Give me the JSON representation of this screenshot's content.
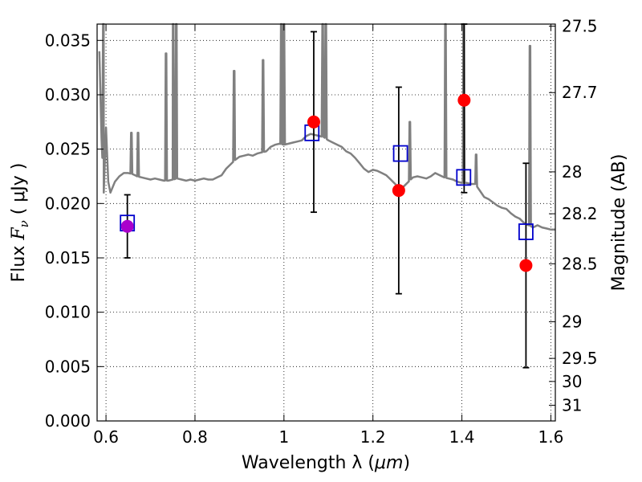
{
  "chart_data": {
    "type": "scatter",
    "xlabel_prefix": "Wavelength  λ (",
    "xlabel_unit": "μm",
    "xlabel_suffix": ")",
    "ylabel_prefix": "Flux  ",
    "ylabel_symbol": "F",
    "ylabel_sub": "ν",
    "ylabel_unit": "  ( μJy )",
    "y2label": "Magnitude (AB)",
    "xlim": [
      0.58,
      1.61
    ],
    "ylim": [
      0.0,
      0.0365
    ],
    "grid": true,
    "x_ticks": [
      {
        "value": 0.6,
        "label": "0.6"
      },
      {
        "value": 0.8,
        "label": "0.8"
      },
      {
        "value": 1.0,
        "label": "1"
      },
      {
        "value": 1.2,
        "label": "1.2"
      },
      {
        "value": 1.4,
        "label": "1.4"
      },
      {
        "value": 1.6,
        "label": "1.6"
      }
    ],
    "y_ticks": [
      {
        "value": 0.0,
        "label": "0.000"
      },
      {
        "value": 0.005,
        "label": "0.005"
      },
      {
        "value": 0.01,
        "label": "0.010"
      },
      {
        "value": 0.015,
        "label": "0.015"
      },
      {
        "value": 0.02,
        "label": "0.020"
      },
      {
        "value": 0.025,
        "label": "0.025"
      },
      {
        "value": 0.03,
        "label": "0.030"
      },
      {
        "value": 0.035,
        "label": "0.035"
      }
    ],
    "mag_ticks": [
      {
        "value": 27.5,
        "label": "27.5"
      },
      {
        "value": 27.7,
        "label": "27.7"
      },
      {
        "value": 28.0,
        "label": "28"
      },
      {
        "value": 28.2,
        "label": "28.2"
      },
      {
        "value": 28.5,
        "label": "28.5"
      },
      {
        "value": 29.0,
        "label": "29"
      },
      {
        "value": 29.5,
        "label": "29.5"
      },
      {
        "value": 30.0,
        "label": "30"
      },
      {
        "value": 31.0,
        "label": "31"
      }
    ],
    "spectrum": {
      "color": "#808080",
      "x": [
        0.585,
        0.59,
        0.595,
        0.6,
        0.605,
        0.61,
        0.62,
        0.63,
        0.64,
        0.65,
        0.66,
        0.67,
        0.68,
        0.69,
        0.7,
        0.71,
        0.72,
        0.73,
        0.74,
        0.75,
        0.76,
        0.77,
        0.78,
        0.79,
        0.8,
        0.81,
        0.82,
        0.83,
        0.84,
        0.85,
        0.86,
        0.87,
        0.88,
        0.89,
        0.9,
        0.91,
        0.92,
        0.93,
        0.94,
        0.95,
        0.96,
        0.97,
        0.98,
        0.99,
        1.0,
        1.01,
        1.02,
        1.03,
        1.04,
        1.05,
        1.06,
        1.07,
        1.08,
        1.09,
        1.1,
        1.11,
        1.12,
        1.13,
        1.14,
        1.15,
        1.16,
        1.17,
        1.18,
        1.19,
        1.2,
        1.21,
        1.22,
        1.23,
        1.24,
        1.25,
        1.26,
        1.27,
        1.28,
        1.29,
        1.3,
        1.31,
        1.32,
        1.33,
        1.34,
        1.35,
        1.36,
        1.37,
        1.38,
        1.39,
        1.4,
        1.41,
        1.42,
        1.43,
        1.44,
        1.45,
        1.46,
        1.47,
        1.48,
        1.49,
        1.5,
        1.51,
        1.52,
        1.53,
        1.54,
        1.55,
        1.56,
        1.57,
        1.58,
        1.59,
        1.6,
        1.61
      ],
      "y": [
        0.034,
        0.026,
        0.021,
        0.027,
        0.022,
        0.021,
        0.022,
        0.0225,
        0.0228,
        0.0228,
        0.0227,
        0.0225,
        0.0224,
        0.0223,
        0.0222,
        0.0223,
        0.0222,
        0.0221,
        0.0221,
        0.0222,
        0.0223,
        0.0222,
        0.0221,
        0.0222,
        0.0221,
        0.0222,
        0.0223,
        0.0222,
        0.0222,
        0.0224,
        0.0226,
        0.0232,
        0.0236,
        0.024,
        0.0243,
        0.0244,
        0.0245,
        0.0244,
        0.0246,
        0.0247,
        0.0248,
        0.0252,
        0.0254,
        0.0255,
        0.0254,
        0.0255,
        0.0256,
        0.0257,
        0.0258,
        0.0262,
        0.0264,
        0.0263,
        0.0262,
        0.0261,
        0.0258,
        0.0256,
        0.0254,
        0.0252,
        0.0248,
        0.0246,
        0.0242,
        0.0237,
        0.0232,
        0.0229,
        0.0231,
        0.023,
        0.0228,
        0.0226,
        0.0222,
        0.0218,
        0.0214,
        0.0216,
        0.022,
        0.0224,
        0.0225,
        0.0224,
        0.0223,
        0.0225,
        0.0228,
        0.0226,
        0.0224,
        0.0223,
        0.0222,
        0.022,
        0.0219,
        0.0219,
        0.0218,
        0.0218,
        0.0212,
        0.0206,
        0.0204,
        0.0201,
        0.0198,
        0.0196,
        0.0195,
        0.0191,
        0.0188,
        0.0186,
        0.0182,
        0.018,
        0.0178,
        0.018,
        0.0178,
        0.0177,
        0.0176,
        0.0176
      ]
    },
    "emission_lines": [
      {
        "x": 0.594,
        "peak": 0.0365
      },
      {
        "x": 0.657,
        "peak": 0.0265
      },
      {
        "x": 0.672,
        "peak": 0.0265
      },
      {
        "x": 0.735,
        "peak": 0.0338
      },
      {
        "x": 0.751,
        "peak": 0.0365
      },
      {
        "x": 0.758,
        "peak": 0.0365
      },
      {
        "x": 0.888,
        "peak": 0.0322
      },
      {
        "x": 0.953,
        "peak": 0.0332
      },
      {
        "x": 0.994,
        "peak": 0.0365
      },
      {
        "x": 1.0,
        "peak": 0.0365
      },
      {
        "x": 1.087,
        "peak": 0.0365
      },
      {
        "x": 1.094,
        "peak": 0.0365
      },
      {
        "x": 1.283,
        "peak": 0.0275
      },
      {
        "x": 1.363,
        "peak": 0.0365
      },
      {
        "x": 1.404,
        "peak": 0.0365
      },
      {
        "x": 1.432,
        "peak": 0.0245
      },
      {
        "x": 1.553,
        "peak": 0.0345
      }
    ],
    "series": [
      {
        "name": "",
        "marker": "circle",
        "color": "#ff0000",
        "points": [
          {
            "x": 0.648,
            "y": 0.0179,
            "err": 0.0029
          },
          {
            "x": 1.067,
            "y": 0.0275,
            "err": 0.0083
          },
          {
            "x": 1.258,
            "y": 0.0212,
            "err": 0.0095
          },
          {
            "x": 1.405,
            "y": 0.0295,
            "err": 0.0085
          },
          {
            "x": 1.544,
            "y": 0.0143,
            "err": 0.0094
          }
        ]
      },
      {
        "name": "",
        "marker": "square",
        "color": "#0000cc",
        "points": [
          {
            "x": 0.648,
            "y": 0.0182
          },
          {
            "x": 1.063,
            "y": 0.0265
          },
          {
            "x": 1.262,
            "y": 0.0246
          },
          {
            "x": 1.404,
            "y": 0.0224
          },
          {
            "x": 1.544,
            "y": 0.0174
          }
        ]
      }
    ],
    "overlap_color": "#aa00cc"
  }
}
